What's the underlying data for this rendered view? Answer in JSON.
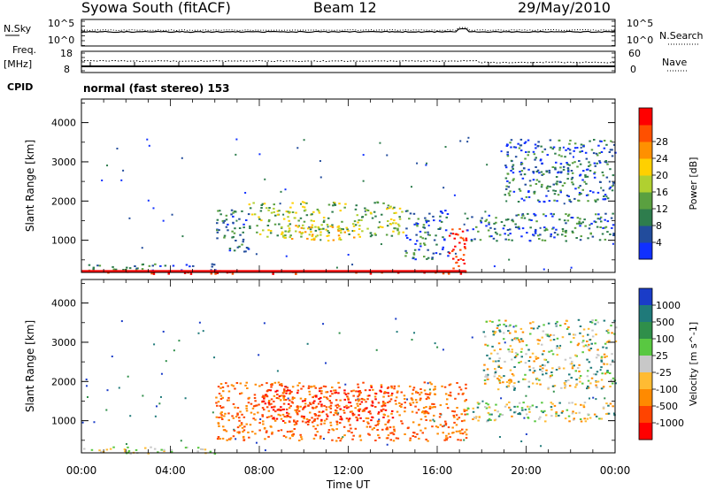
{
  "header": {
    "radar": "Syowa South (fitACF)",
    "beam": "Beam 12",
    "date": "29/May/2010"
  },
  "top_panels": {
    "nsky_label": "N.Sky",
    "nsky_ticks": [
      "10^5",
      "10^0"
    ],
    "nsearch_label": "N.Search",
    "nsearch_ticks": [
      "10^5",
      "10^0"
    ],
    "freq_label": "Freq.",
    "freq_unit": "[MHz]",
    "freq_ticks": [
      "18",
      "8"
    ],
    "nave_label": "Nave",
    "nave_ticks": [
      "60",
      "0"
    ],
    "cpid_label": "CPID",
    "cpid_text": "normal (fast stereo) 153"
  },
  "axes": {
    "xlabel": "Time UT",
    "ylabel": "Slant Range [km]",
    "xticks": [
      "00:00",
      "04:00",
      "08:00",
      "12:00",
      "16:00",
      "20:00",
      "00:00"
    ],
    "yticks": [
      "1000",
      "2000",
      "3000",
      "4000"
    ]
  },
  "chart_data": [
    {
      "type": "heatmap",
      "title": "",
      "xlabel": "Time UT",
      "ylabel": "Slant Range [km]",
      "xlim": [
        0,
        24
      ],
      "ylim": [
        180,
        4600
      ],
      "colorbar": {
        "label": "Power [dB]",
        "ticks": [
          "4",
          "8",
          "12",
          "16",
          "20",
          "24",
          "28"
        ],
        "colors": [
          "#1030ff",
          "#224c9c",
          "#2e7d4d",
          "#5aa040",
          "#b0d030",
          "#ffd000",
          "#ff9000",
          "#ff5000",
          "#ff0000"
        ]
      },
      "regions": [
        {
          "t": [
            0.0,
            17.3
          ],
          "r": [
            180,
            240
          ],
          "level": "high"
        },
        {
          "t": [
            0.0,
            6.0
          ],
          "r": [
            250,
            420
          ],
          "level": "low"
        },
        {
          "t": [
            6.0,
            7.5
          ],
          "r": [
            700,
            1800
          ],
          "level": "low"
        },
        {
          "t": [
            7.5,
            14.5
          ],
          "r": [
            1100,
            2000
          ],
          "level": "medium"
        },
        {
          "t": [
            9.0,
            12.5
          ],
          "r": [
            1000,
            1400
          ],
          "level": "medium-high"
        },
        {
          "t": [
            14.5,
            16.5
          ],
          "r": [
            500,
            1800
          ],
          "level": "low"
        },
        {
          "t": [
            16.5,
            17.3
          ],
          "r": [
            300,
            1400
          ],
          "level": "high"
        },
        {
          "t": [
            17.3,
            24.0
          ],
          "r": [
            1000,
            1700
          ],
          "level": "low"
        },
        {
          "t": [
            19.0,
            24.0
          ],
          "r": [
            2000,
            3600
          ],
          "level": "low"
        }
      ]
    },
    {
      "type": "heatmap",
      "title": "",
      "xlabel": "Time UT",
      "ylabel": "Slant Range [km]",
      "xlim": [
        0,
        24
      ],
      "ylim": [
        180,
        4600
      ],
      "colorbar": {
        "label": "Velocity [m s^-1]",
        "ticks": [
          "1000",
          "500",
          "100",
          "25",
          "-25",
          "-100",
          "-500",
          "-1000"
        ],
        "colors": [
          "#1a3cc8",
          "#1f7a7a",
          "#2f8f4a",
          "#59c841",
          "#c8c8c8",
          "#ffbb33",
          "#ff8a00",
          "#ff4400",
          "#ff0000"
        ]
      },
      "regions": [
        {
          "t": [
            0.0,
            6.0
          ],
          "r": [
            180,
            350
          ],
          "level": "slightly-negative"
        },
        {
          "t": [
            6.0,
            17.3
          ],
          "r": [
            500,
            2000
          ],
          "level": "negative-500"
        },
        {
          "t": [
            8.0,
            14.0
          ],
          "r": [
            1000,
            1900
          ],
          "level": "negative-1000"
        },
        {
          "t": [
            17.3,
            24.0
          ],
          "r": [
            1000,
            1500
          ],
          "level": "mixed"
        },
        {
          "t": [
            18.0,
            24.0
          ],
          "r": [
            1800,
            3600
          ],
          "level": "mixed"
        }
      ]
    }
  ]
}
